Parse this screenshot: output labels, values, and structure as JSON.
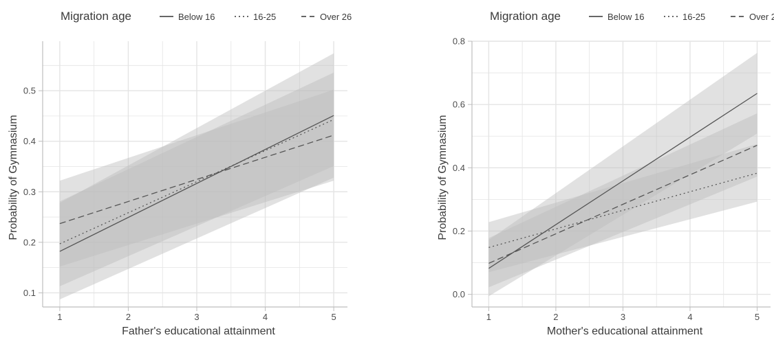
{
  "legend": {
    "title": "Migration age",
    "entries": [
      {
        "label": "Below 16",
        "dash": "solid"
      },
      {
        "label": "16-25",
        "dash": "dotted"
      },
      {
        "label": "Over 26",
        "dash": "dashed"
      }
    ]
  },
  "colors": {
    "line": "#555555",
    "ribbon": "#bdbdbd",
    "grid": "#e4e4e4",
    "text": "#3a3a3a",
    "tick_text": "#4d4d4d"
  },
  "chart_data": [
    {
      "type": "line",
      "xlabel": "Father's educational attainment",
      "ylabel": "Probability of Gymnasium",
      "xlim": [
        0.75,
        5.2
      ],
      "ylim": [
        0.072,
        0.598
      ],
      "x_ticks": [
        1,
        2,
        3,
        4,
        5
      ],
      "y_ticks": [
        0.1,
        0.2,
        0.3,
        0.4,
        0.5
      ],
      "y_tick_labels": [
        "0.1",
        "0.2",
        "0.3",
        "0.4",
        "0.5"
      ],
      "grid": true,
      "legend_position": "top",
      "x": [
        1,
        5
      ],
      "series": [
        {
          "name": "Below 16",
          "dash": "solid",
          "values": [
            0.182,
            0.451
          ],
          "lower": [
            0.087,
            0.328
          ],
          "upper": [
            0.278,
            0.574
          ]
        },
        {
          "name": "16-25",
          "dash": "dotted",
          "values": [
            0.197,
            0.443
          ],
          "lower": [
            0.113,
            0.351
          ],
          "upper": [
            0.281,
            0.536
          ]
        },
        {
          "name": "Over 26",
          "dash": "dashed",
          "values": [
            0.237,
            0.412
          ],
          "lower": [
            0.152,
            0.322
          ],
          "upper": [
            0.322,
            0.502
          ]
        }
      ]
    },
    {
      "type": "line",
      "xlabel": "Mother's educational attainment",
      "ylabel": "Probability of Gymnasium",
      "xlim": [
        0.75,
        5.2
      ],
      "ylim": [
        -0.04,
        0.8
      ],
      "x_ticks": [
        1,
        2,
        3,
        4,
        5
      ],
      "y_ticks": [
        0.0,
        0.2,
        0.4,
        0.6,
        0.8
      ],
      "y_tick_labels": [
        "0.0",
        "0.2",
        "0.4",
        "0.6",
        "0.8"
      ],
      "grid": true,
      "legend_position": "top",
      "x": [
        1,
        5
      ],
      "series": [
        {
          "name": "Below 16",
          "dash": "solid",
          "values": [
            0.082,
            0.635
          ],
          "lower": [
            -0.006,
            0.508
          ],
          "upper": [
            0.172,
            0.763
          ]
        },
        {
          "name": "16-25",
          "dash": "dotted",
          "values": [
            0.148,
            0.383
          ],
          "lower": [
            0.07,
            0.293
          ],
          "upper": [
            0.228,
            0.475
          ]
        },
        {
          "name": "Over 26",
          "dash": "dashed",
          "values": [
            0.098,
            0.471
          ],
          "lower": [
            0.022,
            0.372
          ],
          "upper": [
            0.178,
            0.572
          ]
        }
      ]
    }
  ]
}
